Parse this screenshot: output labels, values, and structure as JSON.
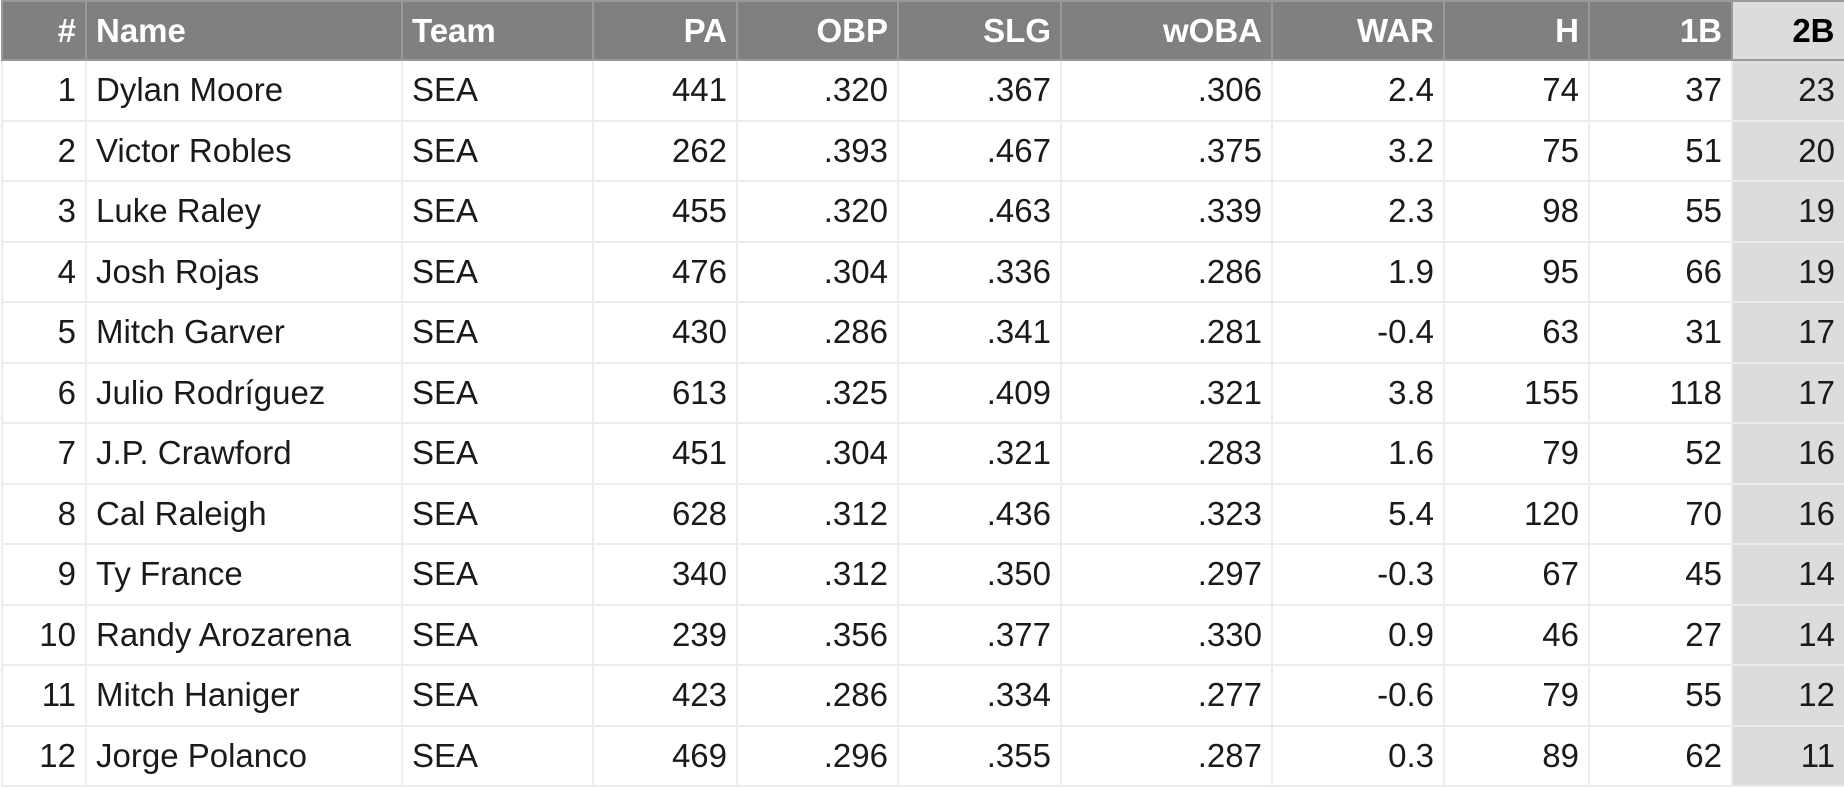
{
  "columns": [
    "#",
    "Name",
    "Team",
    "PA",
    "OBP",
    "SLG",
    "wOBA",
    "WAR",
    "H",
    "1B",
    "2B"
  ],
  "sorted_column": "2B",
  "rows": [
    [
      "1",
      "Dylan Moore",
      "SEA",
      "441",
      ".320",
      ".367",
      ".306",
      "2.4",
      "74",
      "37",
      "23"
    ],
    [
      "2",
      "Victor Robles",
      "SEA",
      "262",
      ".393",
      ".467",
      ".375",
      "3.2",
      "75",
      "51",
      "20"
    ],
    [
      "3",
      "Luke Raley",
      "SEA",
      "455",
      ".320",
      ".463",
      ".339",
      "2.3",
      "98",
      "55",
      "19"
    ],
    [
      "4",
      "Josh Rojas",
      "SEA",
      "476",
      ".304",
      ".336",
      ".286",
      "1.9",
      "95",
      "66",
      "19"
    ],
    [
      "5",
      "Mitch Garver",
      "SEA",
      "430",
      ".286",
      ".341",
      ".281",
      "-0.4",
      "63",
      "31",
      "17"
    ],
    [
      "6",
      "Julio Rodríguez",
      "SEA",
      "613",
      ".325",
      ".409",
      ".321",
      "3.8",
      "155",
      "118",
      "17"
    ],
    [
      "7",
      "J.P. Crawford",
      "SEA",
      "451",
      ".304",
      ".321",
      ".283",
      "1.6",
      "79",
      "52",
      "16"
    ],
    [
      "8",
      "Cal Raleigh",
      "SEA",
      "628",
      ".312",
      ".436",
      ".323",
      "5.4",
      "120",
      "70",
      "16"
    ],
    [
      "9",
      "Ty France",
      "SEA",
      "340",
      ".312",
      ".350",
      ".297",
      "-0.3",
      "67",
      "45",
      "14"
    ],
    [
      "10",
      "Randy Arozarena",
      "SEA",
      "239",
      ".356",
      ".377",
      ".330",
      "0.9",
      "46",
      "27",
      "14"
    ],
    [
      "11",
      "Mitch Haniger",
      "SEA",
      "423",
      ".286",
      ".334",
      ".277",
      "-0.6",
      "79",
      "55",
      "12"
    ],
    [
      "12",
      "Jorge Polanco",
      "SEA",
      "469",
      ".296",
      ".355",
      ".287",
      "0.3",
      "89",
      "62",
      "11"
    ]
  ],
  "colors": {
    "header_bg": "#808080",
    "sorted_bg": "#dcdcdc"
  }
}
